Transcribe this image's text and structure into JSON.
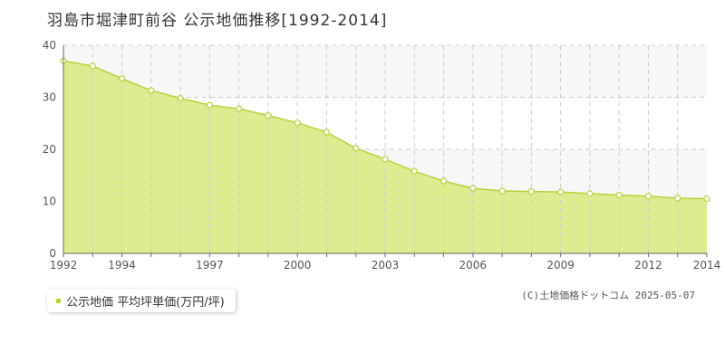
{
  "title": "羽島市堀津町前谷 公示地価推移[1992-2014]",
  "legend": {
    "label": "公示地価 平均坪単価(万円/坪)"
  },
  "copyright": "(C)土地価格ドットコム 2025-05-07",
  "colors": {
    "area_fill": "#dcec90",
    "line": "#b6d23c",
    "marker_fill": "#ffffff",
    "grid": "#cccccc",
    "band": "#f7f7f7",
    "legend_swatch": "#b6d23c"
  },
  "chart_data": {
    "type": "area",
    "title": "羽島市堀津町前谷 公示地価推移[1992-2014]",
    "xlabel": "",
    "ylabel": "",
    "x": [
      1992,
      1993,
      1994,
      1995,
      1996,
      1997,
      1998,
      1999,
      2000,
      2001,
      2002,
      2003,
      2004,
      2005,
      2006,
      2007,
      2008,
      2009,
      2010,
      2011,
      2012,
      2013,
      2014
    ],
    "series": [
      {
        "name": "公示地価 平均坪単価(万円/坪)",
        "values": [
          37.0,
          36.0,
          33.6,
          31.3,
          29.8,
          28.5,
          27.8,
          26.5,
          25.1,
          23.3,
          20.2,
          18.1,
          15.8,
          13.9,
          12.5,
          12.0,
          11.9,
          11.8,
          11.5,
          11.2,
          11.0,
          10.6,
          10.5
        ]
      }
    ],
    "xlim": [
      1992,
      2014
    ],
    "ylim": [
      0,
      40
    ],
    "y_ticks": [
      0,
      10,
      20,
      30,
      40
    ],
    "x_tick_labels": [
      "1992",
      "1994",
      "1997",
      "2000",
      "2003",
      "2006",
      "2009",
      "2012",
      "2014"
    ],
    "grid": true,
    "legend_position": "bottom-left"
  }
}
